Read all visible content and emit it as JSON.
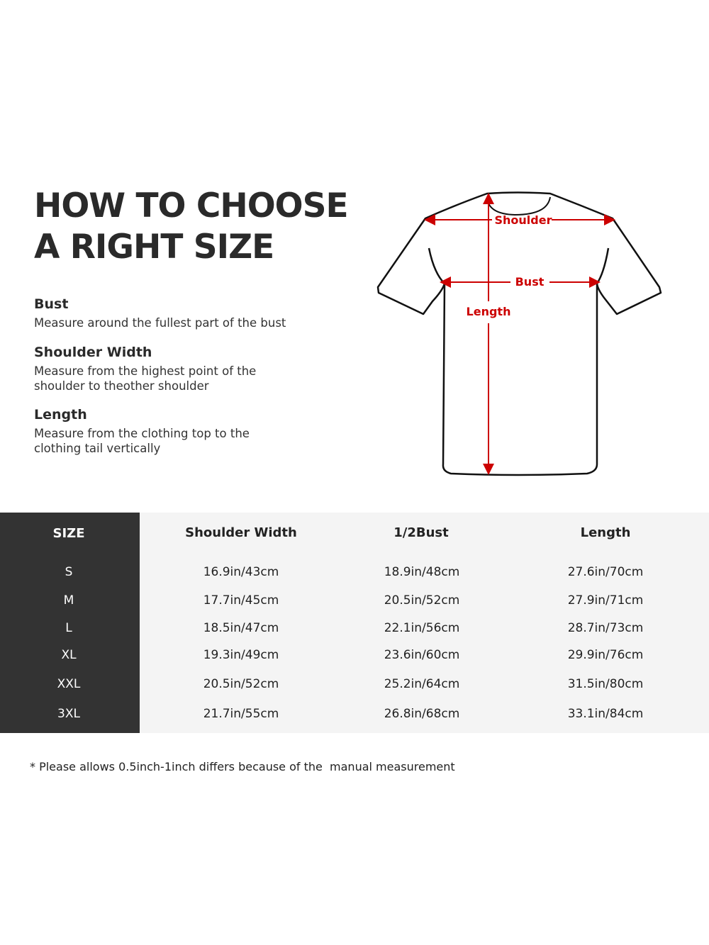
{
  "title": {
    "line1": "HOW TO CHOOSE",
    "line2": "A RIGHT SIZE"
  },
  "definitions": [
    {
      "heading": "Bust",
      "text": "Measure around the fullest part of the bust"
    },
    {
      "heading": "Shoulder Width",
      "text": "Measure from the highest point of the shoulder to theother shoulder"
    },
    {
      "heading": "Length",
      "text": "Measure from the clothing top to the clothing tail vertically"
    }
  ],
  "diagram": {
    "labels": {
      "shoulder": "Shoulder",
      "bust": "Bust",
      "length": "Length"
    },
    "arrow_color": "#cc0000",
    "outline_color": "#111111"
  },
  "table": {
    "headers": [
      "SIZE",
      "Shoulder Width",
      "1/2Bust",
      "Length"
    ],
    "rows": [
      [
        "S",
        "16.9in/43cm",
        "18.9in/48cm",
        "27.6in/70cm"
      ],
      [
        "M",
        "17.7in/45cm",
        "20.5in/52cm",
        "27.9in/71cm"
      ],
      [
        "L",
        "18.5in/47cm",
        "22.1in/56cm",
        "28.7in/73cm"
      ],
      [
        "XL",
        "19.3in/49cm",
        "23.6in/60cm",
        "29.9in/76cm"
      ],
      [
        "XXL",
        "20.5in/52cm",
        "25.2in/64cm",
        "31.5in/80cm"
      ],
      [
        "3XL",
        "21.7in/55cm",
        "26.8in/68cm",
        "33.1in/84cm"
      ]
    ],
    "colors": {
      "size_column": "#333333",
      "body": "#f4f4f4"
    }
  },
  "note": "* Please allows 0.5inch-1inch differs because of the  manual measurement"
}
